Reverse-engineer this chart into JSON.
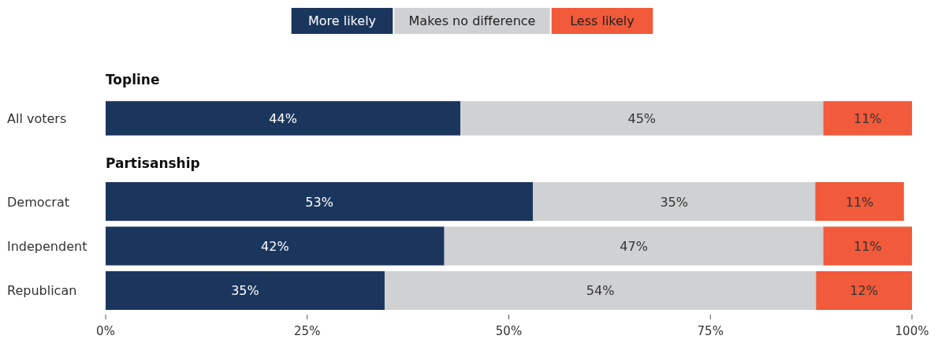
{
  "chart_data": [
    {
      "type": "bar",
      "orientation": "horizontal",
      "stacked": true,
      "title": "Topline",
      "categories": [
        "All voters"
      ],
      "legend": "top",
      "tick_labels": "y",
      "xlim": [
        0,
        100
      ],
      "series": [
        {
          "name": "More likely",
          "color": "#1b365d",
          "values": [
            44
          ],
          "value_labels": [
            "44%"
          ]
        },
        {
          "name": "Makes no difference",
          "color": "#d0d1d3",
          "values": [
            45
          ],
          "value_labels": [
            "45%"
          ]
        },
        {
          "name": "Less likely",
          "color": "#f15a3a",
          "values": [
            11
          ],
          "value_labels": [
            "11%"
          ]
        }
      ]
    },
    {
      "type": "bar",
      "orientation": "horizontal",
      "stacked": true,
      "title": "Partisanship",
      "categories": [
        "Democrat",
        "Independent",
        "Republican"
      ],
      "xlim": [
        0,
        100
      ],
      "xticks": [
        {
          "value": 0,
          "label": "0%"
        },
        {
          "value": 25,
          "label": "25%"
        },
        {
          "value": 50,
          "label": "50%"
        },
        {
          "value": 75,
          "label": "75%"
        },
        {
          "value": 100,
          "label": "100%"
        }
      ],
      "series": [
        {
          "color": "#1b365d",
          "values": [
            53,
            42,
            34.6
          ],
          "value_labels": [
            "53%",
            "42%",
            "35%"
          ]
        },
        {
          "color": "#d0d1d3",
          "values": [
            35,
            47,
            53.5
          ],
          "value_labels": [
            "35%",
            "47%",
            "54%"
          ]
        },
        {
          "color": "#f15a3a",
          "values": [
            11,
            11,
            11.9
          ],
          "value_labels": [
            "11%",
            "11%",
            "12%"
          ]
        }
      ]
    }
  ]
}
